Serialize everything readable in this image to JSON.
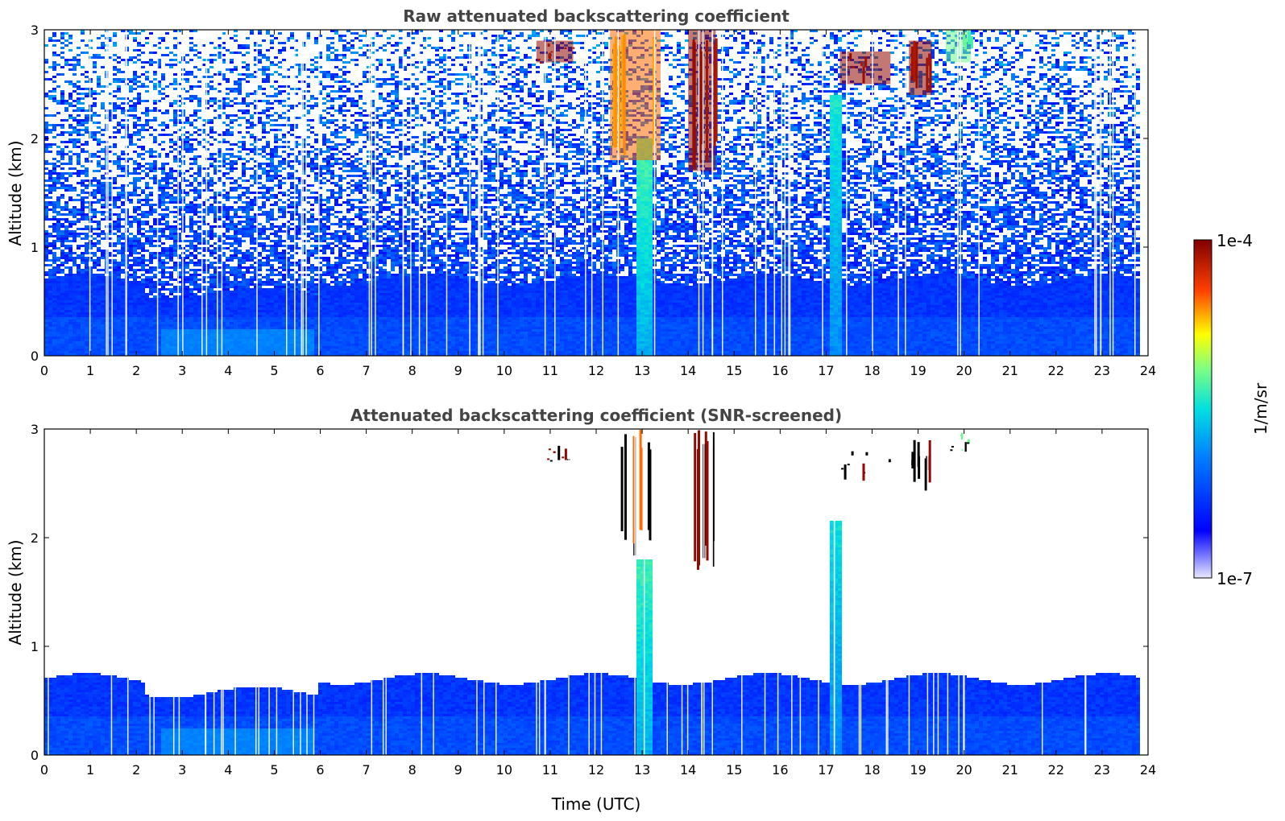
{
  "chart_data": [
    {
      "type": "heatmap",
      "title": "Raw attenuated backscattering coefficient",
      "xlabel": "",
      "ylabel": "Altitude (km)",
      "xlim": [
        0,
        24
      ],
      "ylim": [
        0,
        3
      ],
      "x_ticks": [
        "0",
        "1",
        "2",
        "3",
        "4",
        "5",
        "6",
        "7",
        "8",
        "9",
        "10",
        "11",
        "12",
        "13",
        "14",
        "15",
        "16",
        "17",
        "18",
        "19",
        "20",
        "21",
        "22",
        "23",
        "24"
      ],
      "y_ticks": [
        "0",
        "1",
        "2",
        "3"
      ],
      "screened": false,
      "boundary_layer_top_km": 0.7,
      "features": [
        {
          "kind": "aerosol",
          "x_start": 2.5,
          "x_end": 5.9,
          "y_bottom": 0.0,
          "y_top": 0.25,
          "level": 0.35
        },
        {
          "kind": "plume",
          "x_start": 12.9,
          "x_end": 13.2,
          "y_bottom": 0.0,
          "y_top": 2.0,
          "level": 0.55
        },
        {
          "kind": "plume",
          "x_start": 17.1,
          "x_end": 17.35,
          "y_bottom": 0.0,
          "y_top": 2.4,
          "level": 0.5
        },
        {
          "kind": "cloud",
          "x_start": 12.3,
          "x_end": 13.4,
          "y_bottom": 1.8,
          "y_top": 3.0,
          "level": 0.82
        },
        {
          "kind": "cloud",
          "x_start": 10.7,
          "x_end": 11.5,
          "y_bottom": 2.7,
          "y_top": 2.9,
          "level": 0.98
        },
        {
          "kind": "cloud",
          "x_start": 14.0,
          "x_end": 14.6,
          "y_bottom": 1.7,
          "y_top": 3.0,
          "level": 0.98
        },
        {
          "kind": "cloud",
          "x_start": 17.3,
          "x_end": 18.4,
          "y_bottom": 2.5,
          "y_top": 2.8,
          "level": 0.98
        },
        {
          "kind": "cloud",
          "x_start": 18.8,
          "x_end": 19.3,
          "y_bottom": 2.4,
          "y_top": 2.9,
          "level": 0.98
        },
        {
          "kind": "cloud",
          "x_start": 19.6,
          "x_end": 20.15,
          "y_bottom": 2.7,
          "y_top": 3.0,
          "level": 0.6
        }
      ]
    },
    {
      "type": "heatmap",
      "title": "Attenuated backscattering coefficient (SNR-screened)",
      "xlabel": "Time (UTC)",
      "ylabel": "Altitude (km)",
      "xlim": [
        0,
        24
      ],
      "ylim": [
        0,
        3
      ],
      "x_ticks": [
        "0",
        "1",
        "2",
        "3",
        "4",
        "5",
        "6",
        "7",
        "8",
        "9",
        "10",
        "11",
        "12",
        "13",
        "14",
        "15",
        "16",
        "17",
        "18",
        "19",
        "20",
        "21",
        "22",
        "23",
        "24"
      ],
      "y_ticks": [
        "0",
        "1",
        "2",
        "3"
      ],
      "screened": true,
      "boundary_layer_top_km": 0.7
    }
  ],
  "colorbar": {
    "label": "1/m/sr",
    "max_label": "1e-4",
    "min_label": "1e-7",
    "colormap": "jet"
  }
}
